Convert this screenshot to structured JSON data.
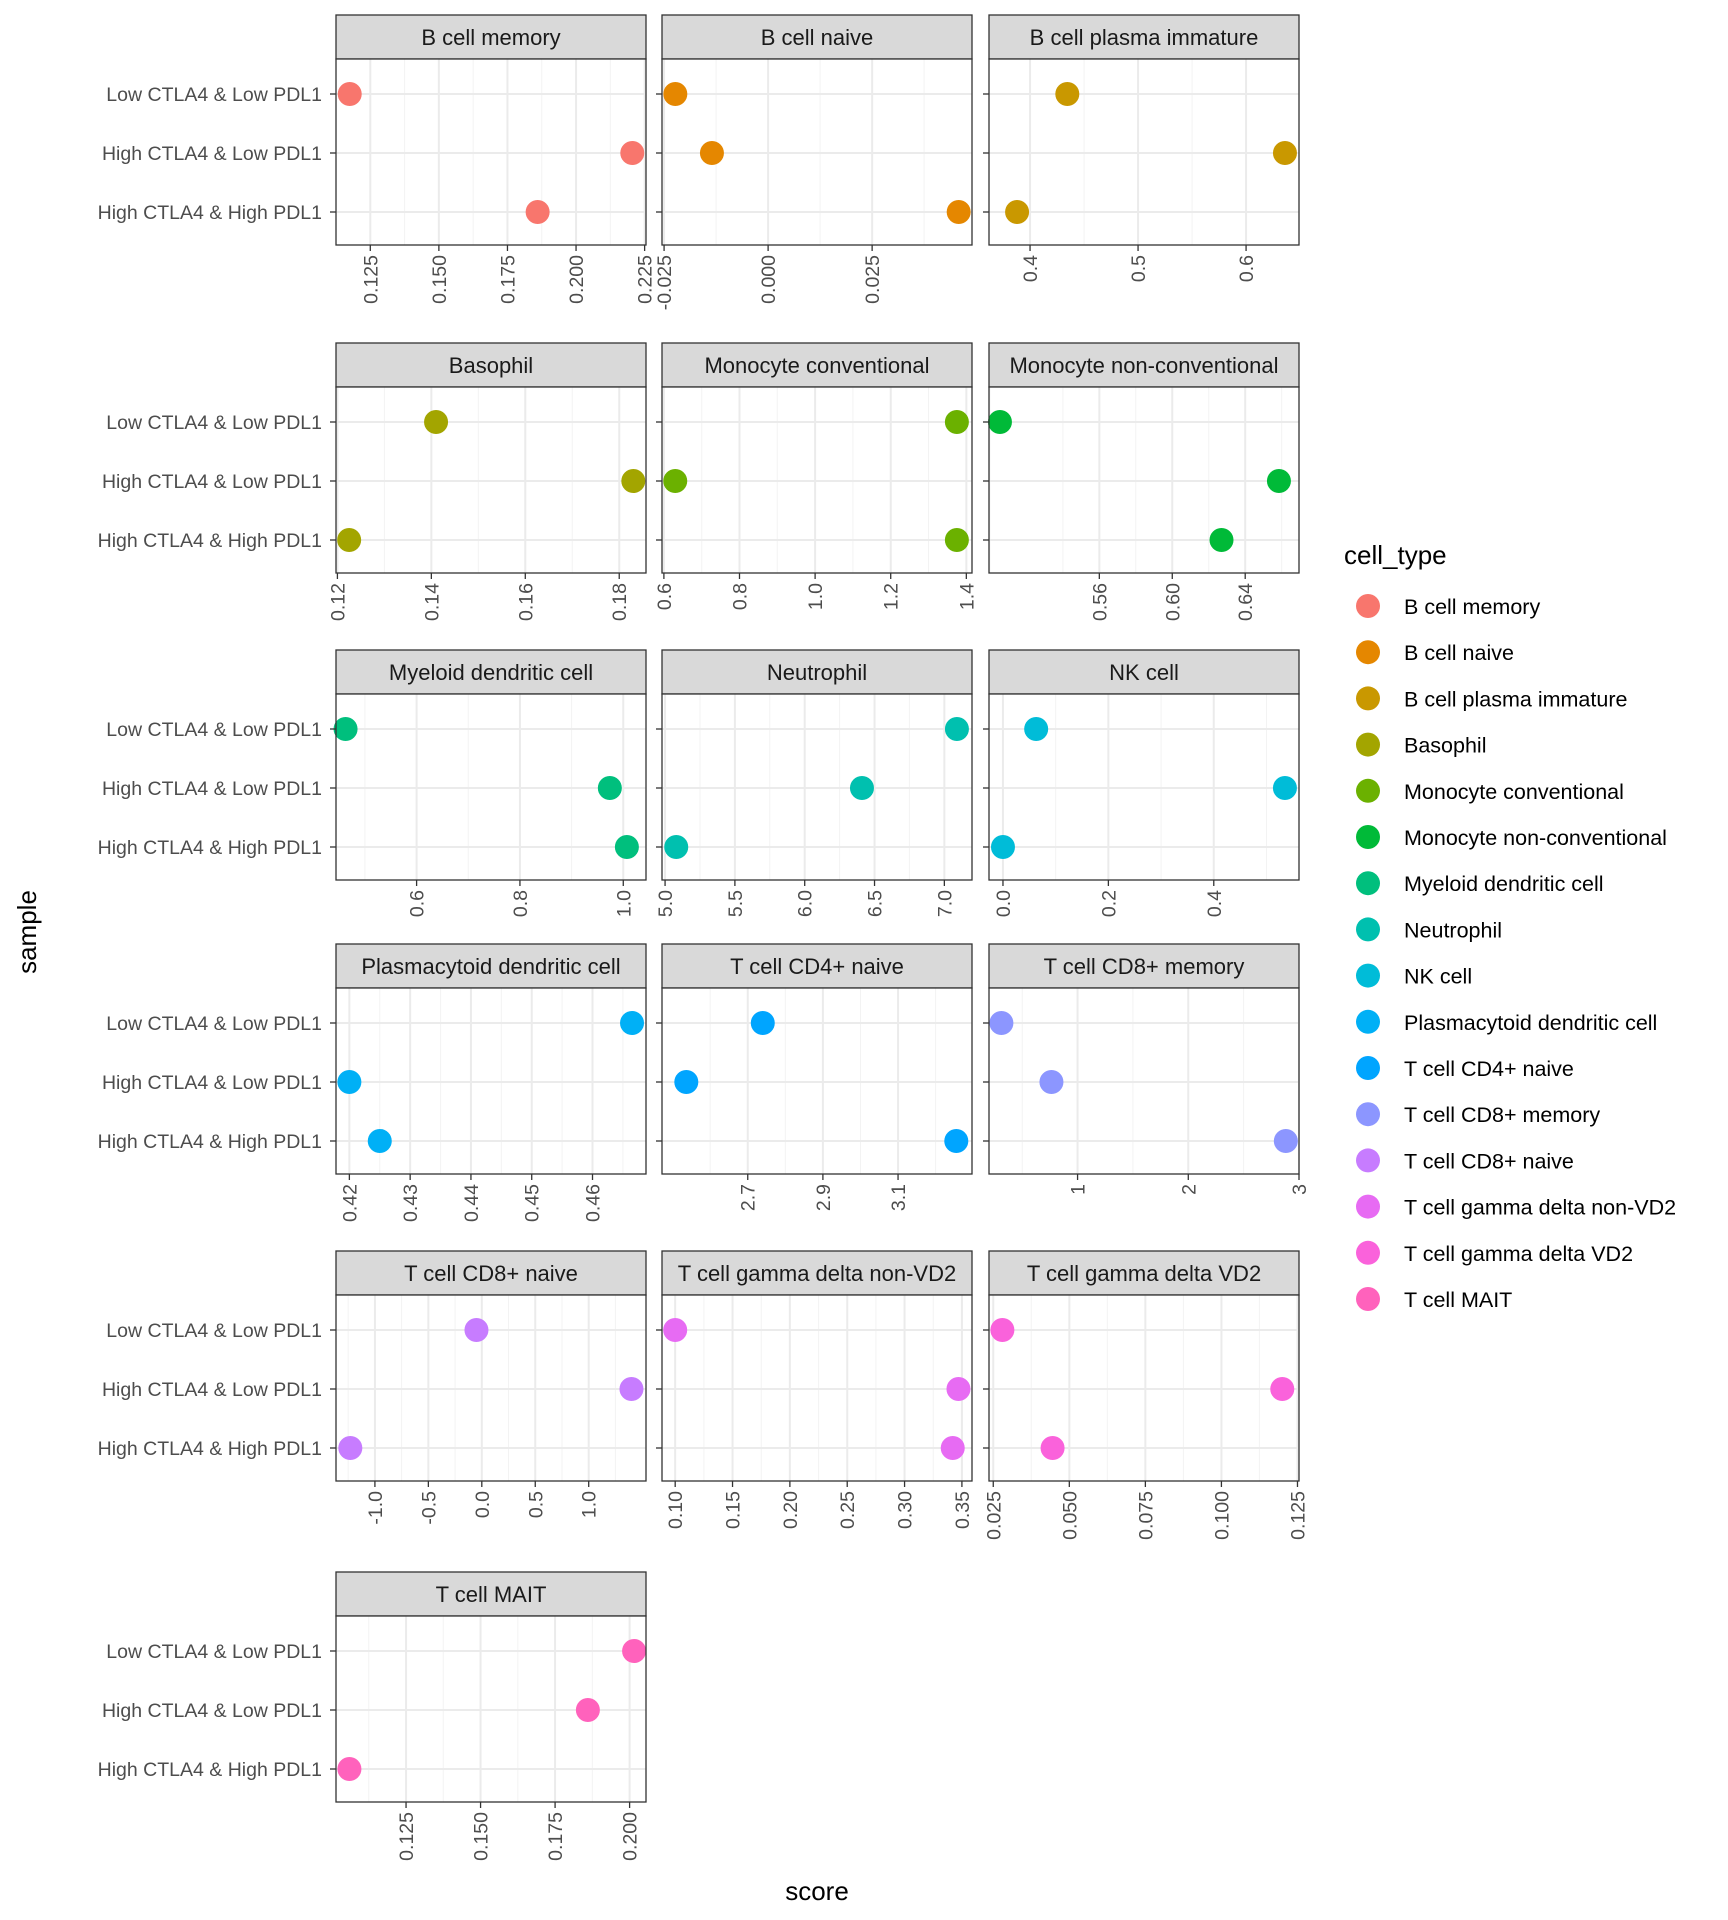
{
  "chart_data": {
    "type": "scatter",
    "xlabel": "score",
    "ylabel": "sample",
    "samples": [
      "Low CTLA4 & Low PDL1",
      "High CTLA4 & Low PDL1",
      "High CTLA4 & High PDL1"
    ],
    "legend": {
      "title": "cell_type",
      "position": "right"
    },
    "grid": true,
    "panels": [
      {
        "title": "B cell memory",
        "color": "#F8766D",
        "xlim": [
          0.1125,
          0.2255
        ],
        "ticks": [
          0.125,
          0.15,
          0.175,
          0.2,
          0.225
        ],
        "tick_labels": [
          "0.125",
          "0.150",
          "0.175",
          "0.200",
          "0.225"
        ],
        "values": [
          0.1175,
          0.2205,
          0.186
        ]
      },
      {
        "title": "B cell naive",
        "color": "#E58700",
        "xlim": [
          -0.0255,
          0.049
        ],
        "ticks": [
          -0.025,
          0.0,
          0.025
        ],
        "tick_labels": [
          "-0.025",
          "0.000",
          "0.025"
        ],
        "values": [
          -0.0223,
          -0.0135,
          0.0458
        ]
      },
      {
        "title": "B cell plasma immature",
        "color": "#C99800",
        "xlim": [
          0.362,
          0.649
        ],
        "ticks": [
          0.4,
          0.5,
          0.6
        ],
        "tick_labels": [
          "0.4",
          "0.5",
          "0.6"
        ],
        "values": [
          0.4345,
          0.636,
          0.388
        ]
      },
      {
        "title": "Basophil",
        "color": "#A3A500",
        "xlim": [
          0.1197,
          0.1857
        ],
        "ticks": [
          0.12,
          0.14,
          0.16,
          0.18
        ],
        "tick_labels": [
          "0.12",
          "0.14",
          "0.16",
          "0.18"
        ],
        "values": [
          0.141,
          0.183,
          0.1225
        ]
      },
      {
        "title": "Monocyte conventional",
        "color": "#6BB100",
        "xlim": [
          0.595,
          1.415
        ],
        "ticks": [
          0.6,
          0.8,
          1.0,
          1.2,
          1.4
        ],
        "tick_labels": [
          "0.6",
          "0.8",
          "1.0",
          "1.2",
          "1.4"
        ],
        "values": [
          1.375,
          0.63,
          1.375
        ]
      },
      {
        "title": "Monocyte non-conventional",
        "color": "#00BA38",
        "xlim": [
          0.4995,
          0.6695
        ],
        "ticks": [
          0.56,
          0.6,
          0.64
        ],
        "tick_labels": [
          "0.56",
          "0.60",
          "0.64"
        ],
        "values": [
          0.5055,
          0.6585,
          0.627
        ]
      },
      {
        "title": "Myeloid dendritic cell",
        "color": "#00BF7D",
        "xlim": [
          0.444,
          1.044
        ],
        "ticks": [
          0.6,
          0.8,
          1.0
        ],
        "tick_labels": [
          "0.6",
          "0.8",
          "1.0"
        ],
        "values": [
          0.4625,
          0.974,
          1.007
        ]
      },
      {
        "title": "Neutrophil",
        "color": "#00C0AF",
        "xlim": [
          4.978,
          7.198
        ],
        "ticks": [
          5.0,
          5.5,
          6.0,
          6.5,
          7.0
        ],
        "tick_labels": [
          "5.0",
          "5.5",
          "6.0",
          "6.5",
          "7.0"
        ],
        "values": [
          7.09,
          6.41,
          5.08
        ]
      },
      {
        "title": "NK cell",
        "color": "#00BCD8",
        "xlim": [
          -0.0265,
          0.5617
        ],
        "ticks": [
          0.0,
          0.2,
          0.4
        ],
        "tick_labels": [
          "0.0",
          "0.2",
          "0.4"
        ],
        "values": [
          0.063,
          0.535,
          0.0
        ],
        "_r": 0
      },
      {
        "title": "Plasmacytoid dendritic cell",
        "color": "#00B0F6",
        "xlim": [
          0.4178,
          0.4688
        ],
        "ticks": [
          0.42,
          0.43,
          0.44,
          0.45,
          0.46
        ],
        "tick_labels": [
          "0.42",
          "0.43",
          "0.44",
          "0.45",
          "0.46"
        ],
        "values": [
          0.4665,
          0.42,
          0.425
        ]
      },
      {
        "title": "T cell CD4+ naive",
        "color": "#00A5FF",
        "xlim": [
          2.4718,
          3.2968
        ],
        "ticks": [
          2.7,
          2.9,
          3.1
        ],
        "tick_labels": [
          "2.7",
          "2.9",
          "3.1"
        ],
        "values": [
          2.74,
          2.5365,
          3.255
        ]
      },
      {
        "title": "T cell CD8+ memory",
        "color": "#8C96FF",
        "xlim": [
          0.2,
          3.0
        ],
        "ticks": [
          1,
          2,
          3
        ],
        "tick_labels": [
          "1",
          "2",
          "3"
        ],
        "values": [
          0.312,
          0.764,
          2.881
        ]
      },
      {
        "title": "T cell CD8+ naive",
        "color": "#C77CFF",
        "xlim": [
          -1.364,
          1.536
        ],
        "ticks": [
          -1.0,
          -0.5,
          0.0,
          0.5,
          1.0
        ],
        "tick_labels": [
          "-1.0",
          "-0.5",
          "0.0",
          "0.5",
          "1.0"
        ],
        "values": [
          -0.05,
          1.4,
          -1.23
        ]
      },
      {
        "title": "T cell gamma delta non-VD2",
        "color": "#E76BF3",
        "xlim": [
          0.0885,
          0.3588
        ],
        "ticks": [
          0.1,
          0.15,
          0.2,
          0.25,
          0.3,
          0.35
        ],
        "tick_labels": [
          "0.10",
          "0.15",
          "0.20",
          "0.25",
          "0.30",
          "0.35"
        ],
        "values": [
          0.1,
          0.347,
          0.342
        ]
      },
      {
        "title": "T cell gamma delta VD2",
        "color": "#FA62DB",
        "xlim": [
          0.0236,
          0.1255
        ],
        "ticks": [
          0.025,
          0.05,
          0.075,
          0.1,
          0.125
        ],
        "tick_labels": [
          "0.025",
          "0.050",
          "0.075",
          "0.100",
          "0.125"
        ],
        "values": [
          0.028,
          0.12,
          0.0445
        ]
      },
      {
        "title": "T cell MAIT",
        "color": "#FF62BC",
        "xlim": [
          0.1015,
          0.2055
        ],
        "ticks": [
          0.125,
          0.15,
          0.175,
          0.2
        ],
        "tick_labels": [
          "0.125",
          "0.150",
          "0.175",
          "0.200"
        ],
        "values": [
          0.2015,
          0.186,
          0.106
        ]
      }
    ]
  }
}
